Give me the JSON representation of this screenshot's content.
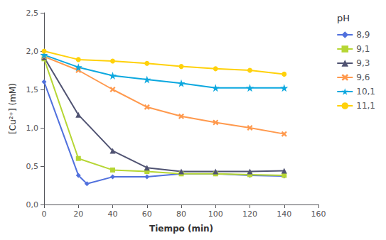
{
  "chart_data": {
    "type": "line",
    "xlabel": "Tiempo (min)",
    "ylabel": "[Cu²⁺] (mM)",
    "xlim": [
      0,
      160
    ],
    "ylim": [
      0.0,
      2.5
    ],
    "xticks": [
      0,
      20,
      40,
      60,
      80,
      100,
      120,
      140,
      160
    ],
    "yticks": [
      {
        "value": 0.0,
        "label": "0,0"
      },
      {
        "value": 0.5,
        "label": "0,5"
      },
      {
        "value": 1.0,
        "label": "1,0"
      },
      {
        "value": 1.5,
        "label": "1,5"
      },
      {
        "value": 2.0,
        "label": "2,0"
      },
      {
        "value": 2.5,
        "label": "2,5"
      }
    ],
    "grid": false,
    "legend": "upper right",
    "legend_title": "pH",
    "series": [
      {
        "name": "8,9",
        "marker": "diamond",
        "x": [
          0,
          20,
          25,
          40,
          60,
          80,
          100,
          120,
          140
        ],
        "values": [
          1.6,
          0.38,
          0.27,
          0.36,
          0.36,
          0.4,
          0.4,
          0.38,
          0.37
        ]
      },
      {
        "name": "9,1",
        "marker": "square",
        "x": [
          0,
          20,
          40,
          60,
          80,
          100,
          120,
          140
        ],
        "values": [
          1.9,
          0.6,
          0.45,
          0.43,
          0.4,
          0.4,
          0.39,
          0.38
        ]
      },
      {
        "name": "9,3",
        "marker": "triangle",
        "x": [
          0,
          20,
          40,
          60,
          80,
          100,
          120,
          140
        ],
        "values": [
          1.92,
          1.17,
          0.7,
          0.48,
          0.43,
          0.43,
          0.43,
          0.44
        ]
      },
      {
        "name": "9,6",
        "marker": "x",
        "x": [
          0,
          20,
          40,
          60,
          80,
          100,
          120,
          140
        ],
        "values": [
          1.93,
          1.75,
          1.5,
          1.27,
          1.15,
          1.07,
          1.0,
          0.92
        ]
      },
      {
        "name": "10,1",
        "marker": "star",
        "x": [
          0,
          20,
          40,
          60,
          80,
          100,
          120,
          140
        ],
        "values": [
          1.95,
          1.79,
          1.68,
          1.63,
          1.58,
          1.52,
          1.52,
          1.52
        ]
      },
      {
        "name": "11,1",
        "marker": "circle",
        "x": [
          0,
          20,
          40,
          60,
          80,
          100,
          120,
          140
        ],
        "values": [
          2.0,
          1.89,
          1.87,
          1.84,
          1.8,
          1.77,
          1.75,
          1.7
        ]
      }
    ]
  }
}
